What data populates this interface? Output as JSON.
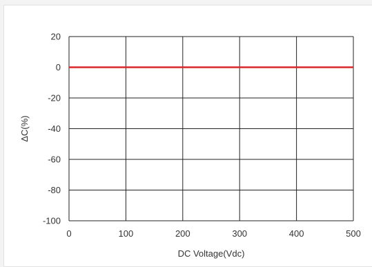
{
  "chart_data": {
    "type": "line",
    "title": "",
    "xlabel": "DC Voltage(Vdc)",
    "ylabel": "ΔC(%)",
    "xlim": [
      0,
      500
    ],
    "ylim": [
      -100,
      20
    ],
    "xticks": [
      0,
      100,
      200,
      300,
      400,
      500
    ],
    "yticks": [
      20,
      0,
      -20,
      -40,
      -60,
      -80,
      -100
    ],
    "grid": true,
    "legend": "none",
    "series": [
      {
        "x": [
          0,
          100,
          200,
          300,
          400,
          500
        ],
        "y": [
          0,
          0,
          0,
          0,
          0,
          0
        ],
        "color": "#d9262b"
      }
    ],
    "colors": {
      "grid": "#222222",
      "series": "#d9262b"
    }
  }
}
